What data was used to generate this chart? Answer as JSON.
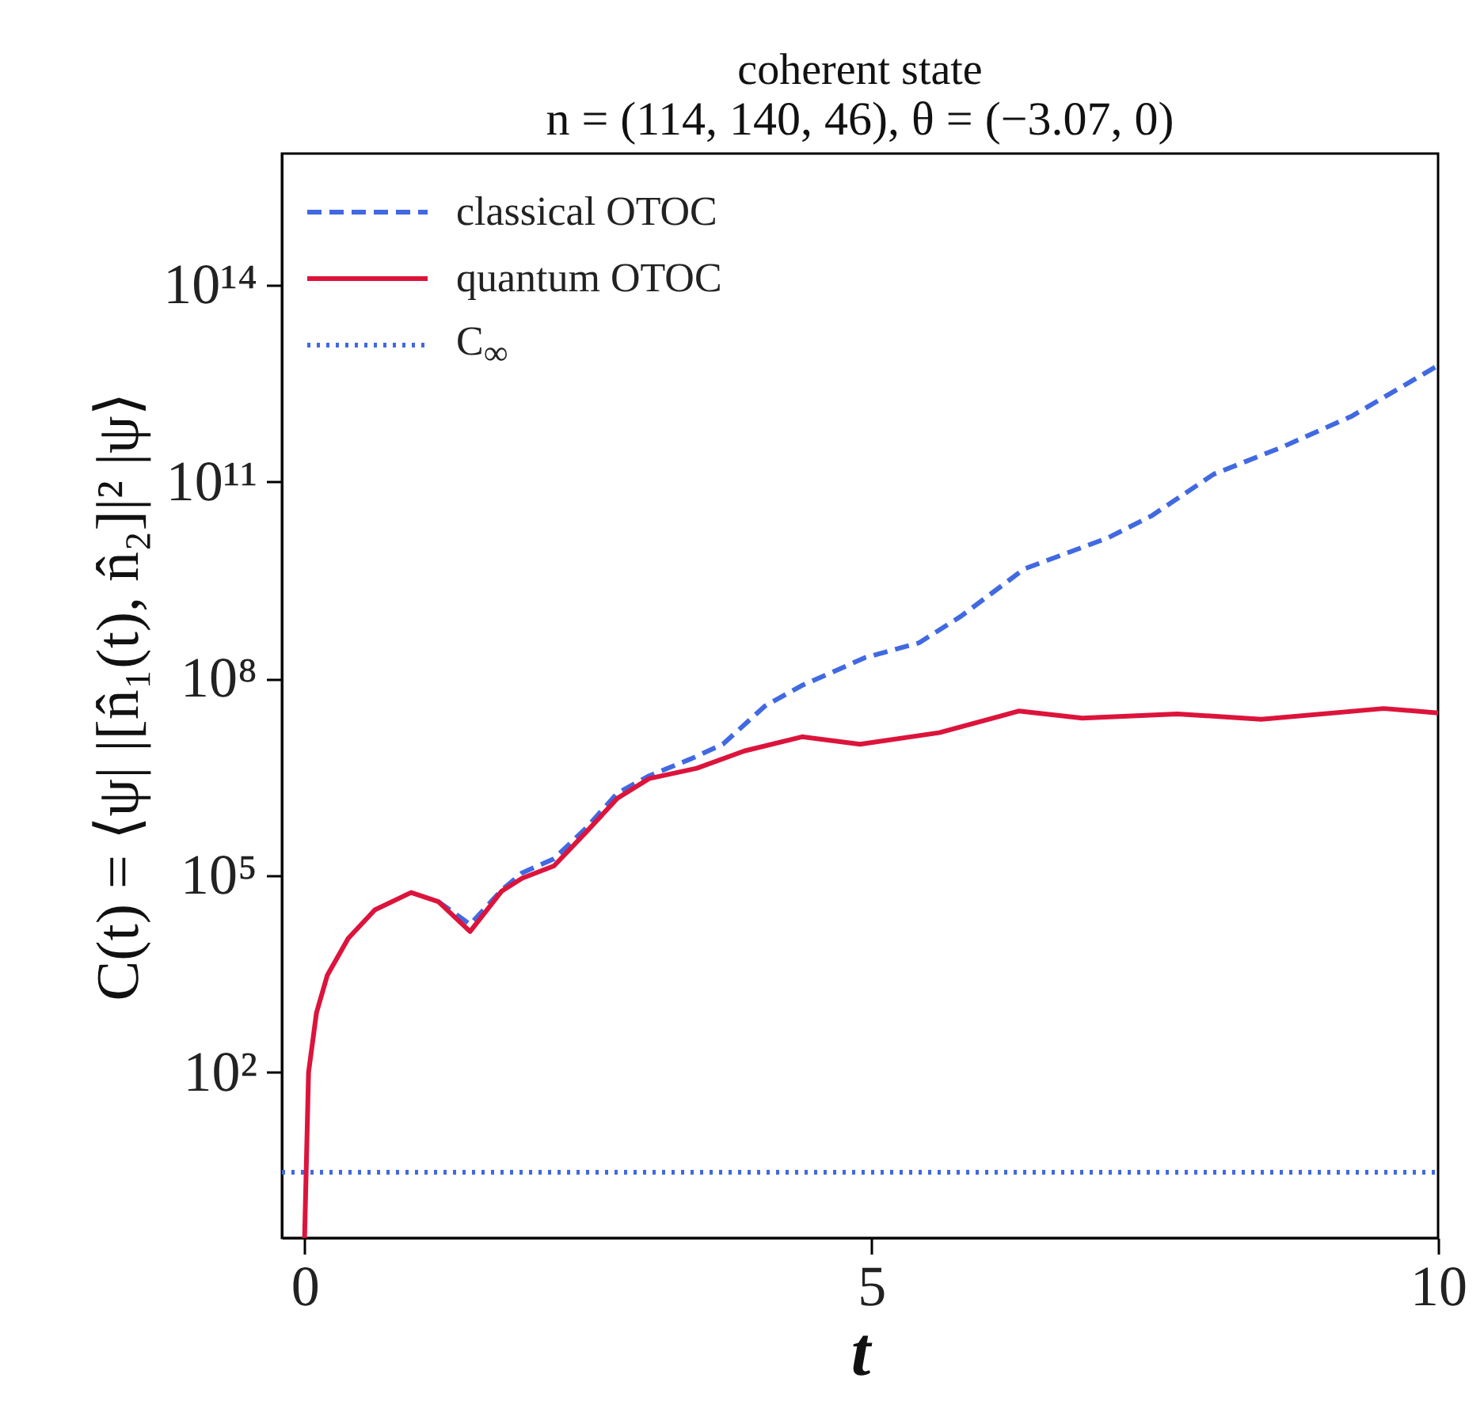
{
  "chart_data": {
    "type": "line",
    "title": "coherent state",
    "subtitle": "n = (114, 140, 46), θ = (−3.07, 0)",
    "xlabel": "t",
    "ylabel": "C(t) = ⟨ψ| |[n̂₁(t), n̂₂]|² |ψ⟩",
    "log": "y",
    "legend": "top left",
    "grid": false,
    "xlim": [
      -0.2,
      10
    ],
    "xticks": [
      0,
      5,
      10
    ],
    "ylim": [
      0.3,
      1e+16
    ],
    "yticks": [
      {
        "value": 100,
        "label": "10²"
      },
      {
        "value": 100000,
        "label": "10⁵"
      },
      {
        "value": 100000000,
        "label": "10⁸"
      },
      {
        "value": 100000000000,
        "label": "10¹¹"
      },
      {
        "value": 100000000000000,
        "label": "10¹⁴"
      }
    ],
    "series": [
      {
        "name": "classical OTOC",
        "color": "#4169e1",
        "line_style": "dashed",
        "x": [
          1.18,
          1.46,
          1.74,
          1.92,
          2.2,
          2.48,
          2.76,
          3.04,
          3.41,
          3.69,
          4.06,
          4.39,
          4.95,
          5.42,
          5.79,
          6.35,
          7.09,
          7.47,
          8.02,
          8.63,
          9.24,
          10
        ],
        "values": [
          40000,
          18000,
          60000,
          110000,
          180000,
          520000,
          1800000,
          3300000,
          6000000,
          10000000,
          38000000,
          79000000,
          210000000,
          350000000,
          890000000,
          4700000000,
          14000000000,
          30000000000,
          130000000000,
          340000000000,
          1000000000000,
          5900000000000
        ]
      },
      {
        "name": "quantum OTOC",
        "color": "#dc143c",
        "line_style": "solid",
        "x": [
          0,
          0.035,
          0.105,
          0.2,
          0.385,
          0.62,
          0.94,
          1.18,
          1.46,
          1.74,
          1.92,
          2.2,
          2.48,
          2.76,
          3.04,
          3.46,
          3.88,
          4.39,
          4.9,
          5.6,
          6.3,
          6.86,
          7.7,
          8.44,
          9.52,
          10
        ],
        "values": [
          0.3,
          100,
          810,
          3000,
          11000,
          30000,
          55000,
          40000,
          14000,
          58000,
          91000,
          140000,
          450000,
          1500000,
          3000000,
          4300000,
          7900000,
          13000000,
          10000000,
          15000000,
          32000000,
          25000000,
          29000000,
          24000000,
          35000000,
          30000000
        ]
      },
      {
        "name": "C$_{∞}$",
        "color": "#4169e1",
        "line_style": "dotted",
        "x": [
          -0.2,
          10
        ],
        "values": [
          3,
          3
        ]
      }
    ]
  }
}
